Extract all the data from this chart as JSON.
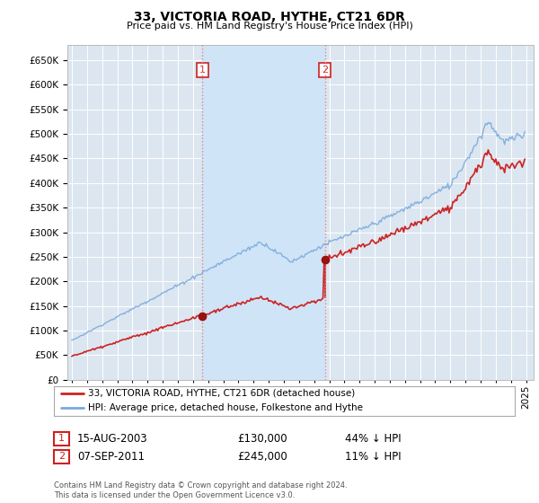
{
  "title": "33, VICTORIA ROAD, HYTHE, CT21 6DR",
  "subtitle": "Price paid vs. HM Land Registry's House Price Index (HPI)",
  "background_color": "#ffffff",
  "plot_bg_color": "#dce6f0",
  "plot_bg_between_color": "#d0e4f7",
  "grid_color": "#ffffff",
  "line1_color": "#cc2222",
  "line2_color": "#7aaadd",
  "vline_color": "#dd8888",
  "marker_color": "#991111",
  "ylim_min": 0,
  "ylim_max": 680000,
  "ytick_step": 50000,
  "xmin": 1994.7,
  "xmax": 2025.5,
  "sale1_year": 2003.625,
  "sale1_price": 130000,
  "sale2_year": 2011.708,
  "sale2_price": 245000,
  "footnote": "Contains HM Land Registry data © Crown copyright and database right 2024.\nThis data is licensed under the Open Government Licence v3.0.",
  "legend_label1": "33, VICTORIA ROAD, HYTHE, CT21 6DR (detached house)",
  "legend_label2": "HPI: Average price, detached house, Folkestone and Hythe",
  "table_row1": [
    "1",
    "15-AUG-2003",
    "£130,000",
    "44% ↓ HPI"
  ],
  "table_row2": [
    "2",
    "07-SEP-2011",
    "£245,000",
    "11% ↓ HPI"
  ]
}
